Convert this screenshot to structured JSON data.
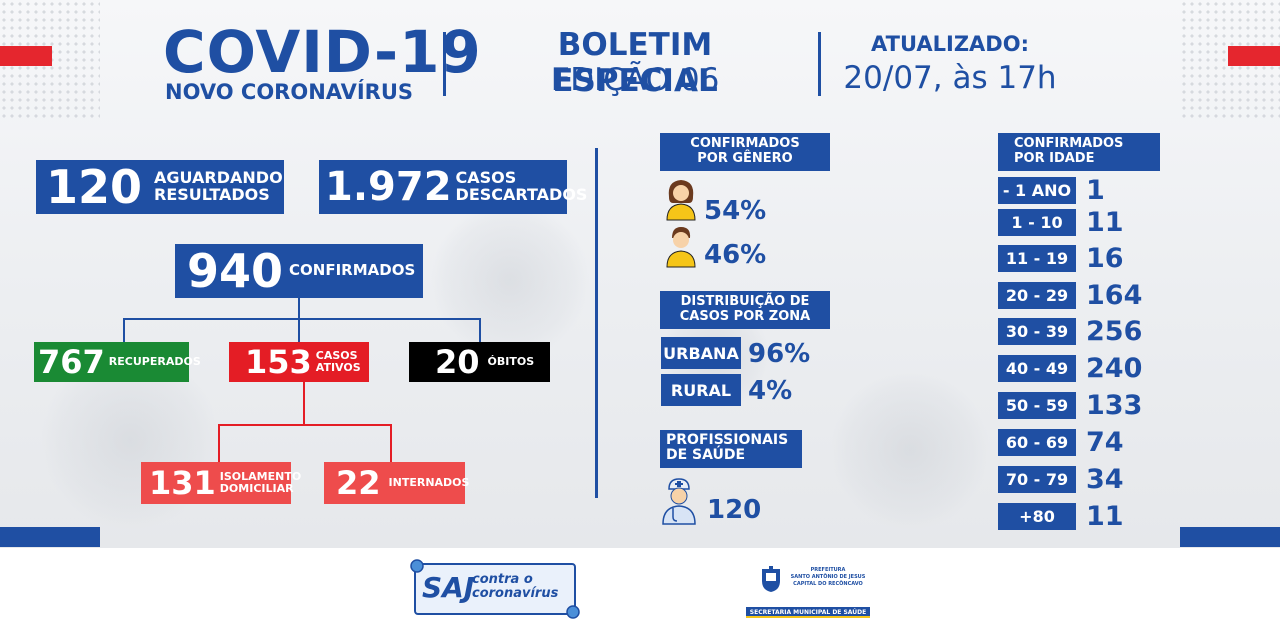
{
  "header": {
    "title": "COVID-19",
    "subtitle": "NOVO CORONAVÍRUS",
    "bulletin_line1": "BOLETIM ESPECIAL",
    "bulletin_line2": "EDIÇÃO 06",
    "updated_label": "ATUALIZADO:",
    "updated_value": "20/07, às 17h"
  },
  "summary": {
    "awaiting": {
      "value": "120",
      "label_line1": "AGUARDANDO",
      "label_line2": "RESULTADOS"
    },
    "discarded": {
      "value": "1.972",
      "label_line1": "CASOS",
      "label_line2": "DESCARTADOS"
    },
    "confirmed": {
      "value": "940",
      "label": "CONFIRMADOS"
    },
    "recovered": {
      "value": "767",
      "label": "RECUPERADOS"
    },
    "active": {
      "value": "153",
      "label_line1": "CASOS",
      "label_line2": "ATIVOS"
    },
    "deaths": {
      "value": "20",
      "label": "ÓBITOS"
    },
    "home_isolation": {
      "value": "131",
      "label_line1": "ISOLAMENTO",
      "label_line2": "DOMICILIAR"
    },
    "hospitalized": {
      "value": "22",
      "label": "INTERNADOS"
    }
  },
  "gender": {
    "header_line1": "CONFIRMADOS",
    "header_line2": "POR GÊNERO",
    "female_pct": "54%",
    "male_pct": "46%"
  },
  "zone": {
    "header_line1": "DISTRIBUIÇÃO DE",
    "header_line2": "CASOS POR ZONA",
    "urban_label": "URBANA",
    "urban_pct": "96%",
    "rural_label": "RURAL",
    "rural_pct": "4%"
  },
  "health_workers": {
    "header_line1": "PROFISSIONAIS",
    "header_line2": "DE SAÚDE",
    "value": "120"
  },
  "age": {
    "header_line1": "CONFIRMADOS",
    "header_line2": "POR IDADE",
    "rows": [
      {
        "label": "- 1 ANO",
        "value": "1"
      },
      {
        "label": "1 - 10",
        "value": "11"
      },
      {
        "label": "11 - 19",
        "value": "16"
      },
      {
        "label": "20 - 29",
        "value": "164"
      },
      {
        "label": "30 - 39",
        "value": "256"
      },
      {
        "label": "40 - 49",
        "value": "240"
      },
      {
        "label": "50 - 59",
        "value": "133"
      },
      {
        "label": "60 - 69",
        "value": "74"
      },
      {
        "label": "70 - 79",
        "value": "34"
      },
      {
        "label": "+80",
        "value": "11"
      }
    ]
  },
  "footer": {
    "saj_big": "SAJ",
    "saj_line1": "contra o",
    "saj_line2": "coronavírus",
    "pref_line1": "PREFEITURA",
    "pref_line2": "SANTO ANTÔNIO DE JESUS",
    "pref_line3": "CAPITAL DO RECÔNCAVO",
    "pref_line4": "SECRETARIA MUNICIPAL DE SAÚDE"
  },
  "colors": {
    "brand_blue": "#1f4fa3",
    "red": "#e41d25",
    "green": "#1a8a34",
    "light_red": "#ee4c4c"
  }
}
